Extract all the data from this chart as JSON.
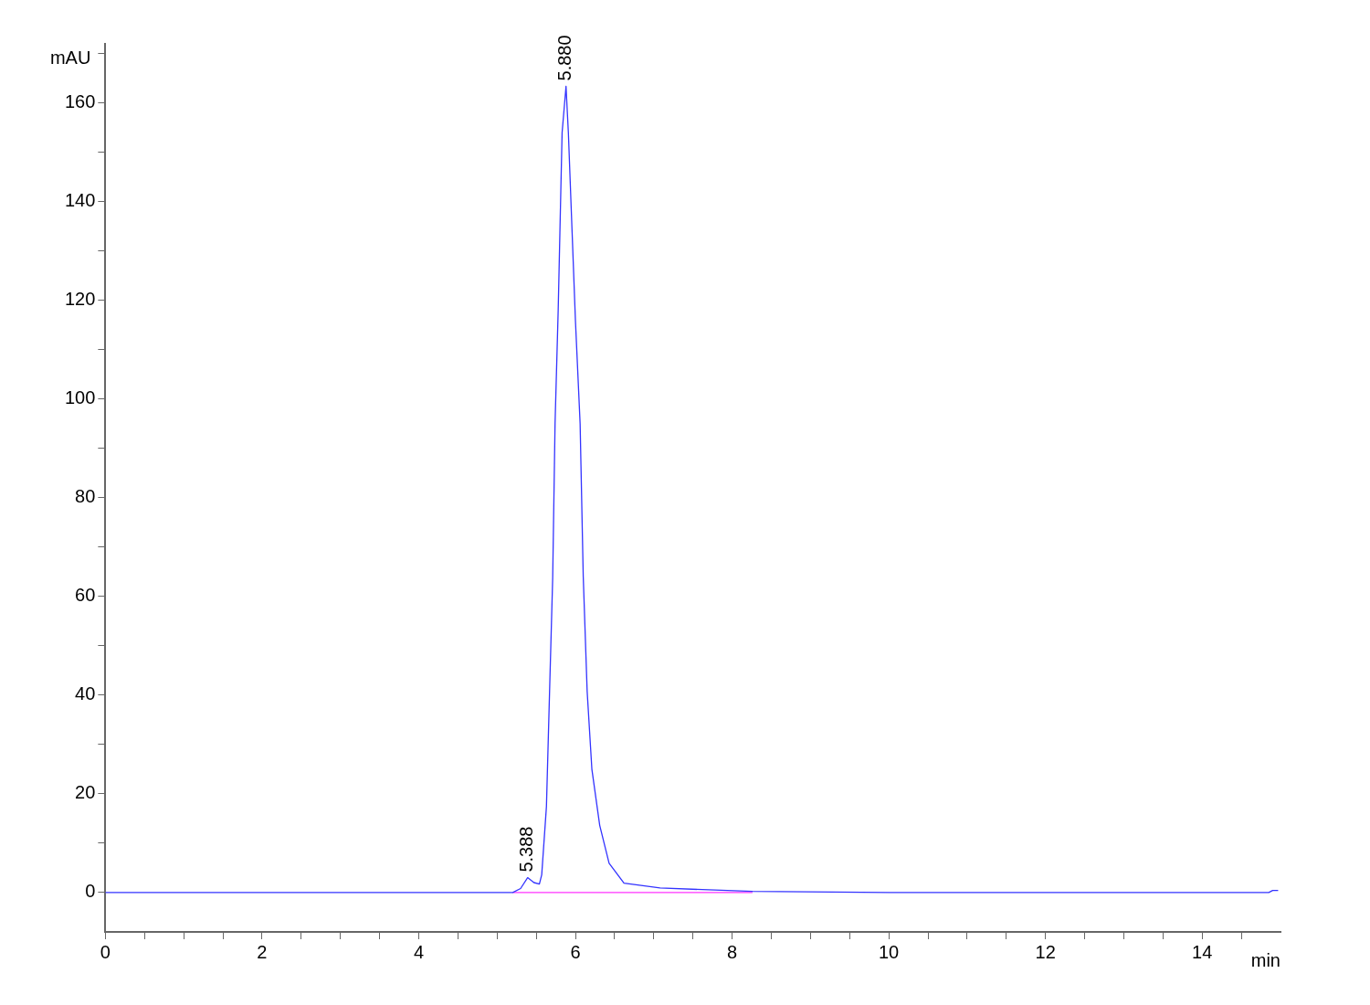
{
  "chart_data": {
    "type": "line",
    "xlabel": "min",
    "ylabel": "mAU",
    "xlim": [
      0,
      15
    ],
    "ylim": [
      -8,
      172
    ],
    "xticks": [
      0,
      {
        "value": 0.5,
        "label": null
      },
      {
        "value": 1,
        "label": null
      },
      {
        "value": 1.5,
        "label": null
      },
      2,
      {
        "value": 2.5,
        "label": null
      },
      {
        "value": 3,
        "label": null
      },
      {
        "value": 3.5,
        "label": null
      },
      4,
      {
        "value": 4.5,
        "label": null
      },
      {
        "value": 5,
        "label": null
      },
      {
        "value": 5.5,
        "label": null
      },
      6,
      {
        "value": 6.5,
        "label": null
      },
      {
        "value": 7,
        "label": null
      },
      {
        "value": 7.5,
        "label": null
      },
      8,
      {
        "value": 8.5,
        "label": null
      },
      {
        "value": 9,
        "label": null
      },
      {
        "value": 9.5,
        "label": null
      },
      10,
      {
        "value": 10.5,
        "label": null
      },
      {
        "value": 11,
        "label": null
      },
      {
        "value": 11.5,
        "label": null
      },
      12,
      {
        "value": 12.5,
        "label": null
      },
      {
        "value": 13,
        "label": null
      },
      {
        "value": 13.5,
        "label": null
      },
      14,
      {
        "value": 14.5,
        "label": null
      }
    ],
    "yticks": [
      0,
      {
        "value": 10,
        "label": null
      },
      20,
      {
        "value": 30,
        "label": null
      },
      40,
      {
        "value": 50,
        "label": null
      },
      60,
      {
        "value": 70,
        "label": null
      },
      80,
      {
        "value": 90,
        "label": null
      },
      100,
      {
        "value": 110,
        "label": null
      },
      120,
      {
        "value": 130,
        "label": null
      },
      140,
      {
        "value": 150,
        "label": null
      },
      160,
      {
        "value": 170,
        "label": null
      }
    ],
    "grid": false,
    "legend": false,
    "marker": "none",
    "line_style": "solid",
    "series": [
      {
        "color": "#3333ff",
        "x": [
          0,
          2,
          4,
          5.2,
          5.3,
          5.39,
          5.47,
          5.54,
          5.57,
          5.63,
          5.67,
          5.71,
          5.74,
          5.78,
          5.83,
          5.88,
          5.91,
          6.0,
          6.06,
          6.1,
          6.15,
          6.21,
          6.31,
          6.43,
          6.62,
          7.08,
          8.26,
          10,
          12,
          14.85,
          14.9,
          14.97
        ],
        "values": [
          0,
          0,
          0,
          0,
          0.8,
          3.0,
          2.0,
          1.7,
          3.6,
          17.4,
          40.7,
          63.8,
          95,
          118,
          154,
          163.4,
          154,
          116,
          95,
          64,
          40.7,
          25,
          13.6,
          5.9,
          1.9,
          0.9,
          0.2,
          0,
          0,
          0,
          0.4,
          0.4
        ]
      },
      {
        "color": "#ff33ff",
        "x": [
          5.2,
          8.26
        ],
        "values": [
          0,
          0
        ]
      }
    ],
    "annotations": [
      {
        "text": "5.880",
        "x": 5.88,
        "y": 163.4
      },
      {
        "text": "5.388",
        "x": 5.388,
        "y": 3.0
      }
    ]
  }
}
